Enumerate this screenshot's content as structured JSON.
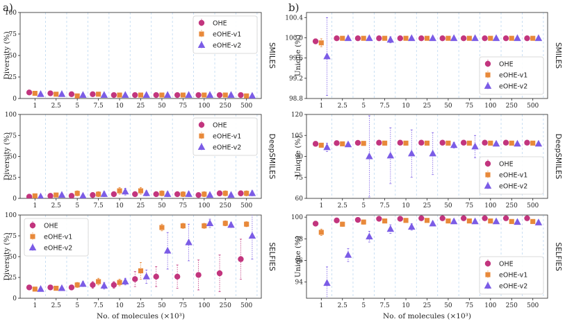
{
  "colors": {
    "OHE": "#c2357e",
    "eOHE-v1": "#e8893a",
    "eOHE-v2": "#7b5ce6",
    "grid": "#bcd7f0"
  },
  "series_names": [
    "OHE",
    "eOHE-v1",
    "eOHE-v2"
  ],
  "markers": [
    "circle",
    "square",
    "triangle"
  ],
  "chart_data": [
    {
      "type": "scatter",
      "panel": "a",
      "panel_label": "a)",
      "title": "SMILES",
      "xlabel": "No. of molecules (×10³)",
      "ylabel": "Diversity (%)",
      "categories": [
        "1",
        "2.5",
        "5",
        "7.5",
        "10",
        "25",
        "50",
        "75",
        "100",
        "250",
        "500"
      ],
      "ylim": [
        0,
        100
      ],
      "yticks": [
        0,
        25,
        50,
        75,
        100
      ],
      "legend": "top-right",
      "series": [
        {
          "name": "OHE",
          "values": [
            7,
            6,
            5,
            5,
            4,
            4,
            4,
            4,
            4,
            4,
            4
          ],
          "err": [
            2,
            2,
            1.5,
            1.5,
            1.5,
            1.5,
            1.5,
            1.5,
            1.5,
            1.5,
            1.5
          ]
        },
        {
          "name": "eOHE-v1",
          "values": [
            6,
            5,
            3,
            5,
            4,
            4,
            4,
            4,
            4,
            4,
            3
          ],
          "err": [
            2,
            2,
            1.5,
            1.5,
            1.5,
            1.5,
            1.5,
            1.5,
            1.5,
            1.5,
            1.5
          ]
        },
        {
          "name": "eOHE-v2",
          "values": [
            5,
            5,
            4,
            4,
            4,
            4,
            4,
            4,
            4,
            4,
            3
          ],
          "err": [
            2,
            2,
            1.5,
            1.5,
            1.5,
            1.5,
            1.5,
            1.5,
            1.5,
            1.5,
            1.5
          ]
        }
      ]
    },
    {
      "type": "scatter",
      "panel": "a",
      "panel_label": "",
      "title": "DeepSMILES",
      "xlabel": "No. of molecules (×10³)",
      "ylabel": "Diversity (%)",
      "categories": [
        "1",
        "2.5",
        "5",
        "7.5",
        "10",
        "25",
        "50",
        "75",
        "100",
        "250",
        "500"
      ],
      "ylim": [
        0,
        100
      ],
      "yticks": [
        0,
        25,
        50,
        75,
        100
      ],
      "legend": "top-right",
      "series": [
        {
          "name": "OHE",
          "values": [
            2,
            3,
            3,
            4,
            5,
            5,
            5,
            5,
            4,
            6,
            6
          ],
          "err": [
            1,
            2,
            2,
            3,
            3,
            3,
            3,
            3,
            2,
            3,
            3
          ]
        },
        {
          "name": "eOHE-v1",
          "values": [
            3,
            4,
            6,
            5,
            9,
            9,
            6,
            5,
            5,
            6,
            6
          ],
          "err": [
            1,
            2,
            3,
            3,
            4,
            4,
            3,
            3,
            3,
            3,
            3
          ]
        },
        {
          "name": "eOHE-v2",
          "values": [
            2,
            4,
            3,
            5,
            8,
            6,
            5,
            5,
            4,
            4,
            6
          ],
          "err": [
            1,
            2,
            2,
            3,
            4,
            3,
            3,
            3,
            2,
            2,
            3
          ]
        }
      ]
    },
    {
      "type": "scatter",
      "panel": "a",
      "panel_label": "",
      "title": "SELFIES",
      "xlabel": "No. of molecules (×10³)",
      "ylabel": "Diversity (%)",
      "categories": [
        "1",
        "2.5",
        "5",
        "7.5",
        "10",
        "25",
        "50",
        "75",
        "100",
        "250",
        "500"
      ],
      "ylim": [
        0,
        100
      ],
      "yticks": [
        0,
        25,
        50,
        75,
        100
      ],
      "legend": "top-left",
      "series": [
        {
          "name": "OHE",
          "values": [
            13,
            13,
            13,
            16,
            16,
            23,
            26,
            26,
            28,
            30,
            47
          ],
          "err": [
            2,
            2,
            3,
            4,
            4,
            9,
            12,
            14,
            18,
            22,
            24
          ]
        },
        {
          "name": "eOHE-v1",
          "values": [
            11,
            12,
            16,
            20,
            19,
            33,
            85,
            87,
            87,
            90,
            89
          ],
          "err": [
            2,
            2,
            3,
            4,
            4,
            10,
            4,
            3,
            3,
            3,
            3
          ]
        },
        {
          "name": "eOHE-v2",
          "values": [
            11,
            12,
            17,
            15,
            20,
            26,
            57,
            67,
            90,
            88,
            75
          ],
          "err": [
            2,
            2,
            3,
            4,
            4,
            8,
            22,
            22,
            5,
            3,
            28
          ]
        }
      ]
    },
    {
      "type": "scatter",
      "panel": "b",
      "panel_label": "b)",
      "title": "SMILES",
      "xlabel": "No. of molecules (×10³)",
      "ylabel": "Unique (%)",
      "categories": [
        "1",
        "2.5",
        "5",
        "7.5",
        "10",
        "25",
        "50",
        "75",
        "100",
        "250",
        "500"
      ],
      "ylim": [
        98.8,
        100.5
      ],
      "yticks": [
        98.8,
        99.2,
        99.6,
        100.0,
        100.4
      ],
      "legend": "bottom-right",
      "series": [
        {
          "name": "OHE",
          "values": [
            99.93,
            99.99,
            99.99,
            99.99,
            99.99,
            99.99,
            99.99,
            99.99,
            99.99,
            99.99,
            99.99
          ],
          "err": [
            0.05,
            0.01,
            0.01,
            0.01,
            0.01,
            0.01,
            0.01,
            0.01,
            0.01,
            0.01,
            0.01
          ]
        },
        {
          "name": "eOHE-v1",
          "values": [
            99.9,
            99.99,
            99.99,
            99.99,
            99.99,
            99.99,
            99.99,
            99.99,
            99.99,
            99.99,
            99.99
          ],
          "err": [
            0.08,
            0.01,
            0.01,
            0.03,
            0.01,
            0.01,
            0.01,
            0.01,
            0.01,
            0.01,
            0.01
          ]
        },
        {
          "name": "eOHE-v2",
          "values": [
            99.63,
            99.99,
            99.99,
            99.96,
            99.99,
            99.99,
            99.99,
            99.99,
            99.99,
            99.99,
            99.99
          ],
          "err": [
            0.77,
            0.01,
            0.02,
            0.06,
            0.01,
            0.01,
            0.01,
            0.01,
            0.01,
            0.01,
            0.01
          ]
        }
      ]
    },
    {
      "type": "scatter",
      "panel": "b",
      "panel_label": "",
      "title": "DeepSMILES",
      "xlabel": "No. of molecules (×10³)",
      "ylabel": "Unique (%)",
      "categories": [
        "1",
        "2.5",
        "5",
        "7.5",
        "10",
        "25",
        "50",
        "75",
        "100",
        "250",
        "500"
      ],
      "ylim": [
        60,
        120
      ],
      "yticks": [
        60,
        75,
        90,
        105,
        120
      ],
      "legend": "bottom-right",
      "series": [
        {
          "name": "OHE",
          "values": [
            99,
            99.5,
            99.7,
            99.8,
            99.8,
            99.8,
            99.8,
            99.8,
            99.8,
            99.8,
            99.8
          ],
          "err": [
            1,
            0.5,
            0.3,
            0.2,
            0.2,
            0.2,
            0.2,
            0.2,
            0.2,
            0.2,
            0.2
          ]
        },
        {
          "name": "eOHE-v1",
          "values": [
            98,
            99,
            99.3,
            99.5,
            99.5,
            99.5,
            99.5,
            99.5,
            99.5,
            99.5,
            99.5
          ],
          "err": [
            1,
            0.5,
            0.4,
            0.3,
            0.3,
            0.3,
            0.3,
            0.3,
            0.3,
            0.3,
            0.3
          ]
        },
        {
          "name": "eOHE-v2",
          "values": [
            96.5,
            98.5,
            90,
            90.5,
            92,
            92,
            98,
            97,
            99,
            99,
            99
          ],
          "err": [
            3,
            1.5,
            29,
            20,
            17,
            15,
            2,
            8,
            1,
            1,
            1
          ]
        }
      ]
    },
    {
      "type": "scatter",
      "panel": "b",
      "panel_label": "",
      "title": "SELFIES",
      "xlabel": "No. of molecules (×10³)",
      "ylabel": "Unique (%)",
      "categories": [
        "1",
        "2.5",
        "5",
        "7.5",
        "10",
        "25",
        "50",
        "75",
        "100",
        "250",
        "500"
      ],
      "ylim": [
        92.5,
        100.2
      ],
      "yticks": [
        94,
        96,
        98,
        100
      ],
      "legend": "bottom-right",
      "series": [
        {
          "name": "OHE",
          "values": [
            99.4,
            99.7,
            99.75,
            99.85,
            99.85,
            99.9,
            99.9,
            99.9,
            99.9,
            99.9,
            99.9
          ],
          "err": [
            0.2,
            0.1,
            0.1,
            0.1,
            0.1,
            0.05,
            0.05,
            0.05,
            0.05,
            0.05,
            0.05
          ]
        },
        {
          "name": "eOHE-v1",
          "values": [
            98.6,
            99.35,
            99.55,
            99.65,
            99.7,
            99.7,
            99.65,
            99.65,
            99.65,
            99.6,
            99.6
          ],
          "err": [
            0.3,
            0.2,
            0.2,
            0.15,
            0.15,
            0.15,
            0.15,
            0.15,
            0.15,
            0.15,
            0.15
          ]
        },
        {
          "name": "eOHE-v2",
          "values": [
            93.9,
            96.5,
            98.2,
            98.9,
            99.1,
            99.4,
            99.6,
            99.6,
            99.6,
            99.55,
            99.5
          ],
          "err": [
            1.5,
            0.6,
            0.5,
            0.4,
            0.3,
            0.2,
            0.2,
            0.2,
            0.2,
            0.2,
            0.2
          ]
        }
      ]
    }
  ]
}
